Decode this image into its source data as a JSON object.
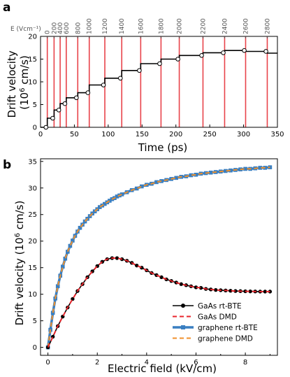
{
  "chart_data": [
    {
      "type": "line",
      "panel_label": "a",
      "xlabel": "Time (ps)",
      "ylabel_line1": "Drift velocity",
      "ylabel_line2": "(10^6 cm/s)",
      "xlim": [
        0,
        350
      ],
      "ylim": [
        0,
        20
      ],
      "xticks": [
        0,
        50,
        100,
        150,
        200,
        250,
        300,
        350
      ],
      "yticks": [
        0,
        5,
        10,
        15,
        20
      ],
      "top_axis_label": "E (Vcm⁻¹)",
      "top_ticks": [
        0,
        200,
        400,
        600,
        800,
        1000,
        1200,
        1400,
        1600,
        1800,
        2000,
        2200,
        2400,
        2600,
        2800
      ],
      "field_switch_times_ps": [
        10,
        20,
        29,
        38,
        55,
        72,
        95,
        120,
        148,
        178,
        205,
        240,
        272,
        303,
        335
      ],
      "trace_color": "#000000",
      "switch_line_color": "#e8434a",
      "x": [
        0,
        10,
        10,
        20,
        20,
        29,
        29,
        38,
        38,
        55,
        55,
        72,
        72,
        95,
        95,
        120,
        120,
        148,
        148,
        178,
        178,
        205,
        205,
        240,
        240,
        272,
        272,
        303,
        303,
        335,
        335,
        350
      ],
      "y": [
        0,
        0,
        2,
        2,
        3.8,
        3.8,
        5.2,
        5.2,
        6.5,
        6.5,
        7.6,
        7.6,
        9.3,
        9.3,
        10.8,
        10.8,
        12.5,
        12.5,
        14,
        14,
        15,
        15,
        15.8,
        15.8,
        16.4,
        16.4,
        16.9,
        16.9,
        16.7,
        16.7,
        16.3,
        16.3
      ],
      "markers_x": [
        8,
        18,
        27,
        36,
        53,
        70,
        93,
        118,
        146,
        176,
        203,
        238,
        270,
        301,
        333
      ],
      "markers_y": [
        0,
        2,
        3.8,
        5.2,
        6.5,
        7.6,
        9.3,
        10.8,
        12.5,
        14,
        15,
        15.8,
        16.4,
        16.9,
        16.7
      ]
    },
    {
      "type": "line",
      "panel_label": "b",
      "xlabel": "Electric field (kV/cm)",
      "ylabel": "Drift velocity (10^6 cm/s)",
      "xlim": [
        -0.3,
        9.3
      ],
      "ylim": [
        -1.5,
        35.5
      ],
      "xticks": [
        0,
        2,
        4,
        6,
        8
      ],
      "yticks": [
        0,
        5,
        10,
        15,
        20,
        25,
        30,
        35
      ],
      "legend_placement": "bottom-right",
      "series": [
        {
          "name": "GaAs rt-BTE",
          "color": "#000000",
          "style": "solid-circle",
          "x": [
            0,
            0.2,
            0.4,
            0.6,
            0.8,
            1.0,
            1.2,
            1.4,
            1.6,
            1.8,
            2.0,
            2.2,
            2.4,
            2.6,
            2.8,
            3.0,
            3.2,
            3.4,
            3.6,
            3.8,
            4.0,
            4.2,
            4.4,
            4.6,
            4.8,
            5.0,
            5.2,
            5.4,
            5.6,
            5.8,
            6.0,
            6.2,
            6.4,
            6.6,
            6.8,
            7.0,
            7.2,
            7.4,
            7.6,
            7.8,
            8.0,
            8.2,
            8.4,
            8.6,
            8.8,
            9.0
          ],
          "values": [
            0,
            2.0,
            4.0,
            5.8,
            7.5,
            9.1,
            10.6,
            11.9,
            13.2,
            14.3,
            15.3,
            16.1,
            16.6,
            16.8,
            16.8,
            16.6,
            16.3,
            15.9,
            15.4,
            15.0,
            14.5,
            14.0,
            13.6,
            13.2,
            12.8,
            12.5,
            12.2,
            11.9,
            11.7,
            11.5,
            11.3,
            11.2,
            11.0,
            10.9,
            10.8,
            10.75,
            10.7,
            10.65,
            10.6,
            10.58,
            10.55,
            10.53,
            10.52,
            10.5,
            10.5,
            10.5
          ]
        },
        {
          "name": "GaAs DMD",
          "color": "#e8262c",
          "style": "dashed",
          "x": [
            0,
            0.2,
            0.4,
            0.6,
            0.8,
            1.0,
            1.2,
            1.4,
            1.6,
            1.8,
            2.0,
            2.2,
            2.4,
            2.6,
            2.8,
            3.0,
            3.2,
            3.4,
            3.6,
            3.8,
            4.0,
            4.2,
            4.4,
            4.6,
            4.8,
            5.0,
            5.2,
            5.4,
            5.6,
            5.8,
            6.0,
            6.2,
            6.4,
            6.6,
            6.8,
            7.0,
            7.2,
            7.4,
            7.6,
            7.8,
            8.0,
            8.2,
            8.4,
            8.6,
            8.8,
            9.0
          ],
          "values": [
            0,
            2.0,
            4.0,
            5.8,
            7.5,
            9.1,
            10.6,
            11.9,
            13.2,
            14.3,
            15.3,
            16.1,
            16.6,
            16.8,
            16.8,
            16.6,
            16.3,
            15.9,
            15.4,
            15.0,
            14.5,
            14.0,
            13.6,
            13.2,
            12.8,
            12.5,
            12.2,
            11.9,
            11.7,
            11.5,
            11.3,
            11.2,
            11.0,
            10.9,
            10.8,
            10.75,
            10.7,
            10.65,
            10.6,
            10.58,
            10.55,
            10.53,
            10.52,
            10.5,
            10.5,
            10.5
          ]
        },
        {
          "name": "graphene rt-BTE",
          "color": "#3a7fc1",
          "style": "solid-square",
          "x": [
            0,
            0.1,
            0.2,
            0.3,
            0.4,
            0.5,
            0.6,
            0.7,
            0.8,
            0.9,
            1.0,
            1.1,
            1.2,
            1.3,
            1.4,
            1.5,
            1.6,
            1.7,
            1.8,
            1.9,
            2.0,
            2.1,
            2.2,
            2.3,
            2.4,
            2.5,
            2.6,
            2.7,
            2.8,
            2.9,
            3.0,
            3.2,
            3.4,
            3.6,
            3.8,
            4.0,
            4.2,
            4.4,
            4.6,
            4.8,
            5.0,
            5.2,
            5.4,
            5.6,
            5.8,
            6.0,
            6.2,
            6.4,
            6.6,
            6.8,
            7.0,
            7.2,
            7.4,
            7.6,
            7.8,
            8.0,
            8.2,
            8.4,
            8.6,
            8.8,
            9.0
          ],
          "values": [
            0,
            3.3,
            6.5,
            9.2,
            11.5,
            13.5,
            15.2,
            16.7,
            18.0,
            19.1,
            20.1,
            21.0,
            21.8,
            22.5,
            23.1,
            23.7,
            24.2,
            24.7,
            25.2,
            25.6,
            26.0,
            26.4,
            26.7,
            27.0,
            27.3,
            27.6,
            27.9,
            28.1,
            28.4,
            28.6,
            28.8,
            29.2,
            29.6,
            29.9,
            30.3,
            30.6,
            30.8,
            31.1,
            31.3,
            31.5,
            31.7,
            31.9,
            32.1,
            32.2,
            32.4,
            32.5,
            32.7,
            32.8,
            32.9,
            33.0,
            33.1,
            33.2,
            33.3,
            33.4,
            33.5,
            33.6,
            33.6,
            33.7,
            33.8,
            33.8,
            33.9
          ]
        },
        {
          "name": "graphene DMD",
          "color": "#f0912c",
          "style": "dashed",
          "x": [
            0,
            0.1,
            0.2,
            0.3,
            0.4,
            0.5,
            0.6,
            0.7,
            0.8,
            0.9,
            1.0,
            1.1,
            1.2,
            1.3,
            1.4,
            1.5,
            1.6,
            1.7,
            1.8,
            1.9,
            2.0,
            2.1,
            2.2,
            2.3,
            2.4,
            2.5,
            2.6,
            2.7,
            2.8,
            2.9,
            3.0,
            3.2,
            3.4,
            3.6,
            3.8,
            4.0,
            4.2,
            4.4,
            4.6,
            4.8,
            5.0,
            5.2,
            5.4,
            5.6,
            5.8,
            6.0,
            6.2,
            6.4,
            6.6,
            6.8,
            7.0,
            7.2,
            7.4,
            7.6,
            7.8,
            8.0,
            8.2,
            8.4,
            8.6,
            8.8,
            9.0
          ],
          "values": [
            0,
            3.3,
            6.5,
            9.2,
            11.5,
            13.5,
            15.2,
            16.7,
            18.0,
            19.1,
            20.1,
            21.0,
            21.8,
            22.5,
            23.1,
            23.7,
            24.2,
            24.7,
            25.2,
            25.6,
            26.0,
            26.4,
            26.7,
            27.0,
            27.3,
            27.6,
            27.9,
            28.1,
            28.4,
            28.6,
            28.8,
            29.2,
            29.6,
            29.9,
            30.3,
            30.6,
            30.8,
            31.1,
            31.3,
            31.5,
            31.7,
            31.9,
            32.1,
            32.2,
            32.4,
            32.5,
            32.7,
            32.8,
            32.9,
            33.0,
            33.1,
            33.2,
            33.3,
            33.4,
            33.5,
            33.6,
            33.6,
            33.7,
            33.8,
            33.8,
            33.9
          ]
        }
      ]
    }
  ]
}
